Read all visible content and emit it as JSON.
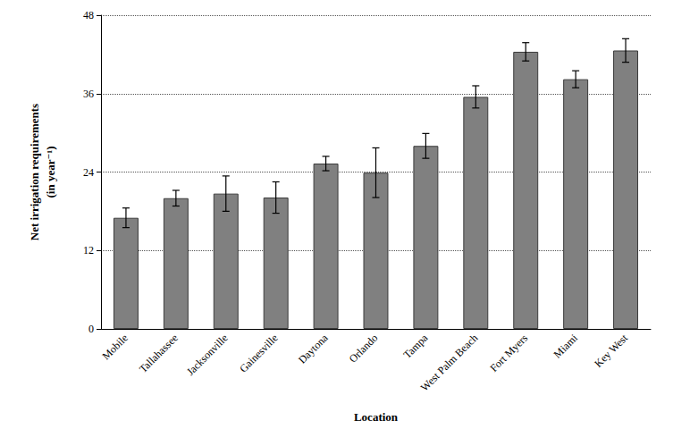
{
  "chart_data": {
    "type": "bar",
    "x_label": "Location",
    "y_label": "Net irrigation requirements\n(in year⁻¹)",
    "categories": [
      "Mobile",
      "Tallahassee",
      "Jacksonville",
      "Gainesville",
      "Daytona",
      "Orlando",
      "Tampa",
      "West Palm Beach",
      "Fort Myers",
      "Miami",
      "Key West"
    ],
    "values": [
      17,
      20,
      20.7,
      20.1,
      25.3,
      23.9,
      28,
      35.5,
      42.4,
      38.2,
      42.6
    ],
    "errors": [
      1.5,
      1.2,
      2.7,
      2.4,
      1.1,
      3.8,
      1.9,
      1.7,
      1.4,
      1.3,
      1.8
    ],
    "color": "#808080",
    "ylim": [
      0,
      48
    ],
    "yticks": [
      0,
      12,
      24,
      36,
      48
    ],
    "grid": true
  }
}
